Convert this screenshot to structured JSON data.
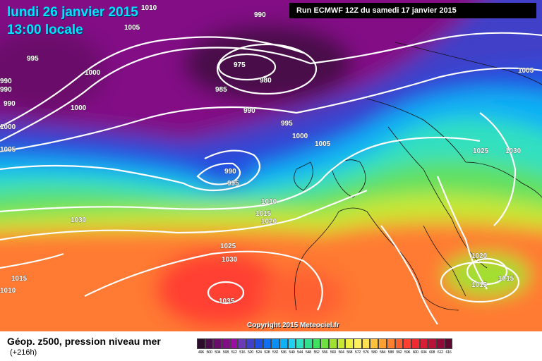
{
  "header": {
    "date": "lundi 26 janvier 2015",
    "time": "13:00 locale",
    "run": "Run ECMWF 12Z du samedi 17 janvier 2015"
  },
  "map": {
    "isobar_labels": [
      "1010",
      "990",
      "1005",
      "995",
      "975",
      "980",
      "1000",
      "985",
      "990",
      "990",
      "1000",
      "1005",
      "995",
      "1000",
      "1005",
      "1005",
      "1025",
      "1030",
      "990",
      "995",
      "1010",
      "1015",
      "1020",
      "1030",
      "1025",
      "1030",
      "1020",
      "1015",
      "1015",
      "1035",
      "1015",
      "1010",
      "990",
      "990",
      "1000"
    ],
    "copyright": "Copyright 2015 Meteociel.fr"
  },
  "legend": {
    "title": "Géop. z500, pression niveau mer",
    "subtitle": "(+216h)",
    "scale_labels": [
      "496",
      "500",
      "504",
      "508",
      "512",
      "516",
      "520",
      "524",
      "528",
      "532",
      "536",
      "540",
      "544",
      "548",
      "552",
      "556",
      "560",
      "564",
      "568",
      "572",
      "576",
      "580",
      "584",
      "588",
      "592",
      "596",
      "600",
      "604",
      "608",
      "612",
      "616"
    ],
    "scale_colors": [
      "#2c0b2b",
      "#4a0c4a",
      "#6a0e6b",
      "#820e85",
      "#9a0fa2",
      "#6a3bb4",
      "#4040c8",
      "#2050e0",
      "#1070f0",
      "#0a90f5",
      "#10b0f5",
      "#20d0ee",
      "#30e0c0",
      "#30e090",
      "#40e060",
      "#70e040",
      "#a0e030",
      "#c8e830",
      "#eef040",
      "#fff060",
      "#ffe050",
      "#ffc040",
      "#ffa030",
      "#ff8030",
      "#ff6030",
      "#ff4030",
      "#f02a30",
      "#d81e34",
      "#b81438",
      "#900c38",
      "#600830"
    ]
  }
}
